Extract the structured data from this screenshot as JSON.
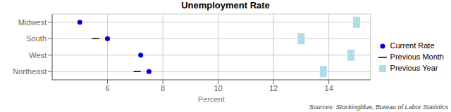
{
  "chart_data": {
    "type": "scatter",
    "orientation": "horizontal",
    "title": "Unemployment Rate",
    "x_label": "Percent",
    "annotations": [
      "Sources: Stockingblue, Bureau of Labor Statistics"
    ],
    "categories": [
      "Midwest",
      "South",
      "West",
      "Northeast"
    ],
    "series": [
      {
        "name": "Current Rate",
        "color": "#0000cc",
        "marker": "circle",
        "values": [
          5.0,
          6.0,
          7.2,
          7.5
        ]
      },
      {
        "name": "Previous Month",
        "color": "#000000",
        "marker": "dash",
        "values": [
          null,
          5.7,
          null,
          7.2
        ]
      },
      {
        "name": "Previous Year",
        "color": "#b0dde8",
        "marker": "square",
        "values": [
          15.0,
          13.0,
          14.8,
          13.8
        ]
      }
    ],
    "xlim": [
      4.0,
      15.5
    ],
    "xticks": [
      6,
      8,
      10,
      12,
      14
    ],
    "grid": true,
    "legend": "right"
  }
}
